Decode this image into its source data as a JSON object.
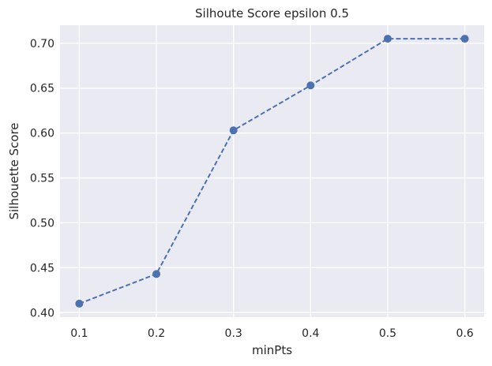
{
  "chart_data": {
    "type": "line",
    "title": "Silhoute Score epsilon 0.5",
    "xlabel": "minPts",
    "ylabel": "Silhouette Score",
    "x": [
      0.1,
      0.2,
      0.3,
      0.4,
      0.5,
      0.6
    ],
    "series": [
      {
        "values": [
          0.41,
          0.443,
          0.603,
          0.653,
          0.705,
          0.705
        ],
        "color": "#4c72b0",
        "line_style": "dashed",
        "marker": "circle"
      }
    ],
    "xlim": [
      0.075,
      0.625
    ],
    "ylim": [
      0.395,
      0.72
    ],
    "x_ticks": [
      "0.1",
      "0.2",
      "0.3",
      "0.4",
      "0.5",
      "0.6"
    ],
    "y_ticks": [
      "0.40",
      "0.45",
      "0.50",
      "0.55",
      "0.60",
      "0.65",
      "0.70"
    ],
    "grid": true,
    "plot_background": "#eaeaf2",
    "grid_color": "#ffffff"
  }
}
